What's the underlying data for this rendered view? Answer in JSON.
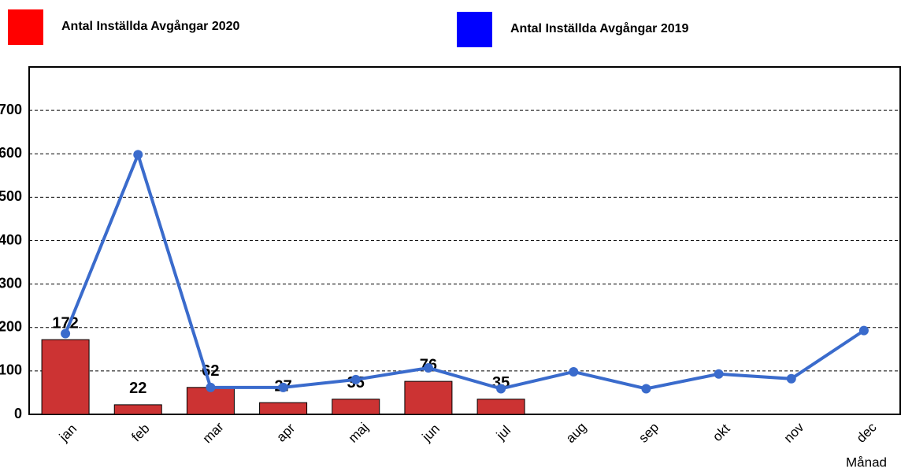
{
  "chart_data": {
    "type": "bar-line",
    "x_label": "Månad",
    "categories": [
      "jan",
      "feb",
      "mar",
      "apr",
      "maj",
      "jun",
      "jul",
      "aug",
      "sep",
      "okt",
      "nov",
      "dec"
    ],
    "series": [
      {
        "name": "Antal Inställda Avgångar 2020",
        "type": "bar",
        "color": "#cc3333",
        "legend_color": "#ff0000",
        "values": [
          172,
          22,
          62,
          27,
          35,
          76,
          35,
          null,
          null,
          null,
          null,
          null
        ]
      },
      {
        "name": "Antal Inställda Avgångar 2019",
        "type": "line",
        "color": "#3a6bcc",
        "legend_color": "#0000ff",
        "values": [
          186,
          598,
          62,
          62,
          80,
          107,
          59,
          98,
          59,
          93,
          82,
          193
        ]
      }
    ],
    "ylim": [
      0,
      800
    ],
    "yticks": [
      0,
      100,
      200,
      300,
      400,
      500,
      600,
      700
    ],
    "grid": true
  }
}
